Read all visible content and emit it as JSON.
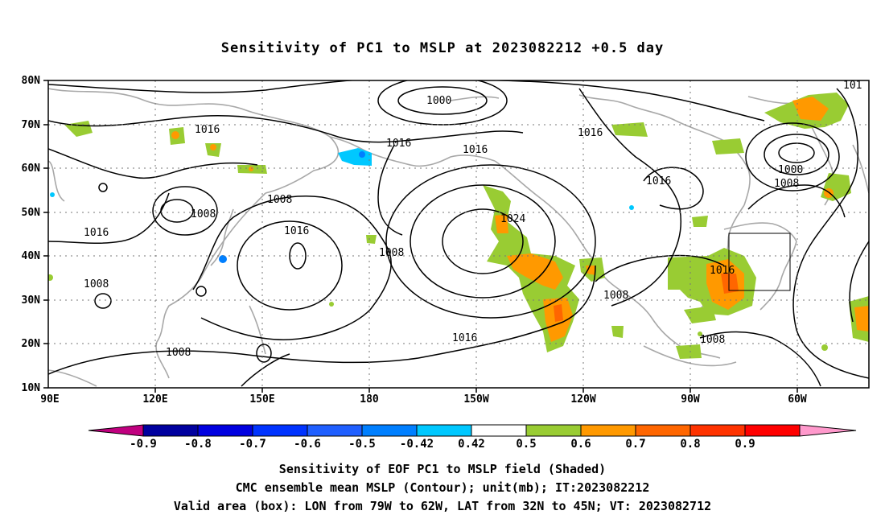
{
  "title": "Sensitivity of PC1 to MSLP at 2023082212 +0.5 day",
  "lat_labels": [
    "80N",
    "70N",
    "60N",
    "50N",
    "40N",
    "30N",
    "20N",
    "10N"
  ],
  "lon_labels": [
    "90E",
    "120E",
    "150E",
    "180",
    "150W",
    "120W",
    "90W",
    "60W"
  ],
  "contour_labels": [
    "1000",
    "1016",
    "1016",
    "1016",
    "1016",
    "1016",
    "1024",
    "1008",
    "1008",
    "1008",
    "1016",
    "1008",
    "1016",
    "1008",
    "1008",
    "1016",
    "1000",
    "1008",
    "1016",
    "1008",
    "1016",
    "101"
  ],
  "colorbar": {
    "labels": [
      "-0.9",
      "-0.8",
      "-0.7",
      "-0.6",
      "-0.5",
      "-0.42",
      "0.42",
      "0.5",
      "0.6",
      "0.7",
      "0.8",
      "0.9"
    ],
    "colors": [
      "#c0007f",
      "#00009f",
      "#0000e0",
      "#0033ff",
      "#1f5fff",
      "#007fff",
      "#00c8ff",
      "#ffffff",
      "#99cc33",
      "#ff9900",
      "#ff6600",
      "#ff3300",
      "#ff0000",
      "#ff99cc"
    ]
  },
  "caption": {
    "line1": "Sensitivity of EOF PC1 to MSLP field (Shaded)",
    "line2": "CMC ensemble mean MSLP (Contour); unit(mb); IT:2023082212",
    "line3": "Valid area (box): LON from 79W to 62W, LAT from 32N to 45N; VT: 2023082712"
  }
}
